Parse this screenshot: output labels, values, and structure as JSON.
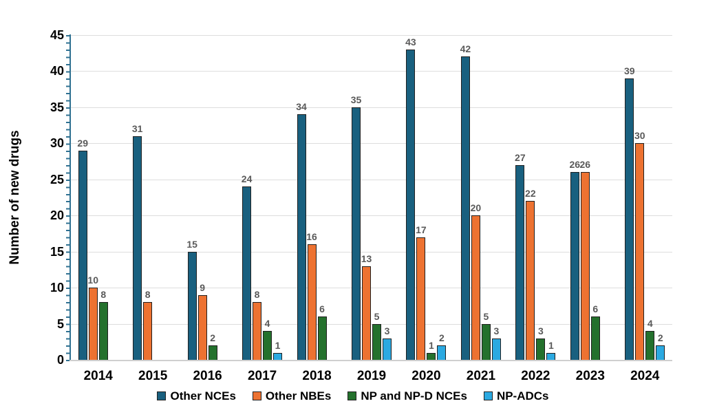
{
  "chart_data": {
    "type": "bar",
    "title": "",
    "xlabel": "",
    "ylabel": "Number of new drugs",
    "ylim": [
      0,
      45
    ],
    "ytick_step": 5,
    "grid": "horizontal-gridlines-on",
    "legend_position": "bottom",
    "categories": [
      "2014",
      "2015",
      "2016",
      "2017",
      "2018",
      "2019",
      "2020",
      "2021",
      "2022",
      "2023",
      "2024"
    ],
    "series": [
      {
        "name": "Other NCEs",
        "color": "#19607F",
        "values": [
          29,
          31,
          15,
          24,
          34,
          35,
          43,
          42,
          27,
          26,
          39
        ]
      },
      {
        "name": "Other NBEs",
        "color": "#ED7231",
        "values": [
          10,
          8,
          9,
          8,
          16,
          13,
          17,
          20,
          22,
          26,
          30
        ]
      },
      {
        "name": "NP and NP-D NCEs",
        "color": "#24712D",
        "values": [
          8,
          null,
          2,
          4,
          6,
          5,
          1,
          5,
          3,
          6,
          4
        ]
      },
      {
        "name": "NP-ADCs",
        "color": "#2BA9E1",
        "values": [
          null,
          null,
          null,
          1,
          null,
          3,
          2,
          3,
          1,
          null,
          2
        ]
      }
    ],
    "colors": {
      "axis": "#2E7091",
      "gridline": "#DDDDDD",
      "baseline": "#CFCFCF",
      "value_label": "#595959",
      "bar_border": "#1F1F1F",
      "text": "#000000"
    }
  }
}
